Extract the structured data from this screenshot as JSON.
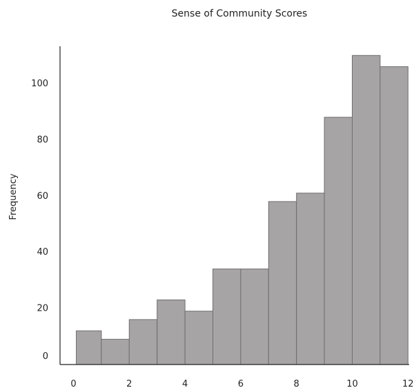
{
  "chart_data": {
    "type": "bar",
    "title": "Sense of Community Scores",
    "xlabel": "",
    "ylabel": "Frequency",
    "bin_edges": [
      0.1,
      1.0,
      2.0,
      3.0,
      4.0,
      5.0,
      6.0,
      7.0,
      8.0,
      9.0,
      10.0,
      11.0,
      12.0
    ],
    "values": [
      12,
      9,
      16,
      23,
      19,
      34,
      34,
      58,
      61,
      88,
      110,
      106
    ],
    "xticks": [
      0,
      2,
      4,
      6,
      8,
      10,
      12
    ],
    "xtick_labels": [
      "0",
      "2",
      "4",
      "6",
      "8",
      "10",
      "12"
    ],
    "yticks": [
      0,
      20,
      40,
      60,
      80,
      100
    ],
    "ytick_labels": [
      "0",
      "20",
      "40",
      "60",
      "80",
      "100"
    ],
    "xlim": [
      -0.4,
      12.0
    ],
    "grid": false,
    "legend": "none",
    "colors": {
      "bar_fill": "#a6a4a5",
      "bar_edge": "#6f6d6e",
      "axis": "#222222"
    }
  }
}
